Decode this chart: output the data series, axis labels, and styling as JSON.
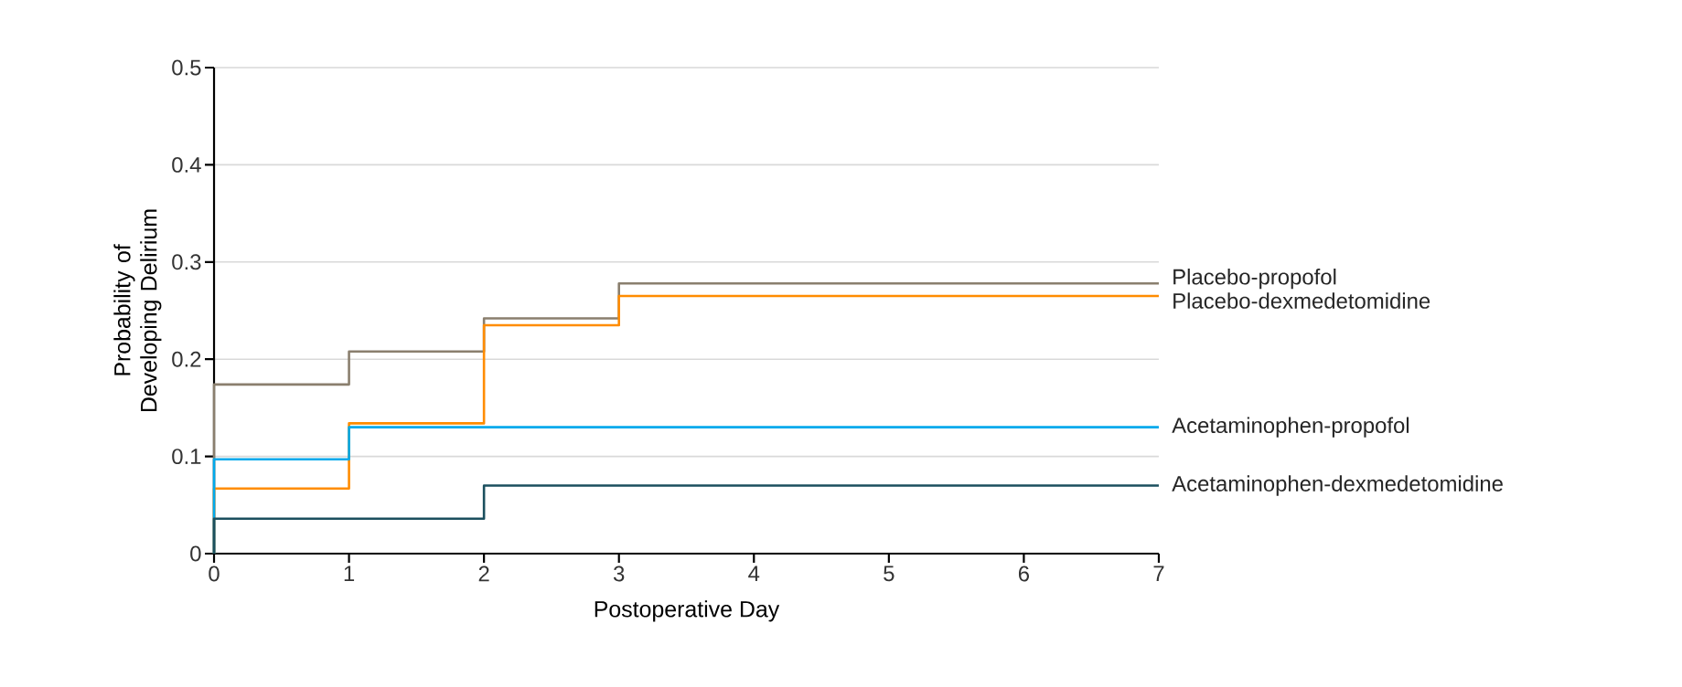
{
  "chart_data": {
    "type": "step",
    "xlabel": "Postoperative Day",
    "ylabel": "Probability of Developing Delirium",
    "xlim": [
      0,
      7
    ],
    "xticks": [
      0,
      1,
      2,
      3,
      4,
      5,
      6,
      7
    ],
    "ylim": [
      0,
      0.5
    ],
    "yticks": [
      0,
      0.1,
      0.2,
      0.3,
      0.4,
      0.5
    ],
    "grid": "y",
    "legend": false,
    "series": [
      {
        "name": "Placebo-propofol",
        "color": "#8a7f6e",
        "x": [
          0,
          0,
          1,
          2,
          3,
          7
        ],
        "values": [
          0,
          0.174,
          0.208,
          0.242,
          0.278,
          0.278
        ]
      },
      {
        "name": "Placebo-dexmedetomidine",
        "color": "#ff8c00",
        "x": [
          0,
          0,
          1,
          2,
          3,
          7
        ],
        "values": [
          0,
          0.067,
          0.134,
          0.235,
          0.265,
          0.265
        ]
      },
      {
        "name": "Acetaminophen-propofol",
        "color": "#00a9ec",
        "x": [
          0,
          0,
          1,
          7
        ],
        "values": [
          0,
          0.097,
          0.13,
          0.13
        ]
      },
      {
        "name": "Acetaminophen-dexmedetomidine",
        "color": "#1b4f5e",
        "x": [
          0,
          0,
          2,
          7
        ],
        "values": [
          0,
          0.036,
          0.07,
          0.07
        ]
      }
    ]
  }
}
